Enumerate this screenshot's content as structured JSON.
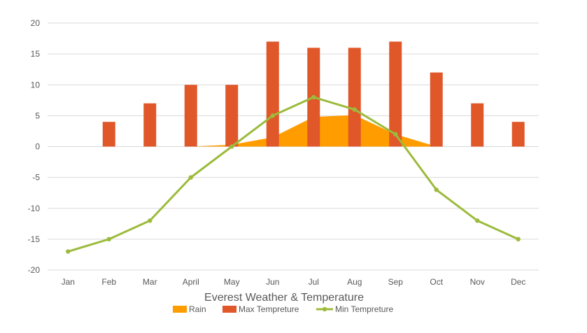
{
  "chart_data": {
    "type": "bar+line+area",
    "title": "Everest Weather & Temperature",
    "xlabel": "",
    "ylabel": "",
    "ylim": [
      -20,
      20
    ],
    "yticks": [
      20,
      15,
      10,
      5,
      0,
      -5,
      -10,
      -15,
      -20
    ],
    "categories": [
      "Jan",
      "Feb",
      "Mar",
      "April",
      "May",
      "Jun",
      "Jul",
      "Aug",
      "Sep",
      "Oct",
      "Nov",
      "Dec"
    ],
    "series": [
      {
        "name": "Rain",
        "kind": "area",
        "color": "#ff9c00",
        "values": [
          0,
          0,
          0,
          0,
          0.3,
          1.5,
          4.8,
          5.1,
          2.0,
          0,
          0,
          0
        ]
      },
      {
        "name": "Max Tempreture",
        "kind": "bar",
        "color": "#e0572a",
        "values": [
          0,
          4,
          7,
          10,
          10,
          17,
          16,
          16,
          17,
          12,
          7,
          4
        ]
      },
      {
        "name": "Min Tempreture",
        "kind": "line",
        "color": "#9cbb3c",
        "values": [
          -17,
          -15,
          -12,
          -5,
          0,
          5,
          8,
          6,
          2,
          -7,
          -12,
          -15
        ]
      }
    ],
    "legend_position": "bottom",
    "grid": true
  }
}
